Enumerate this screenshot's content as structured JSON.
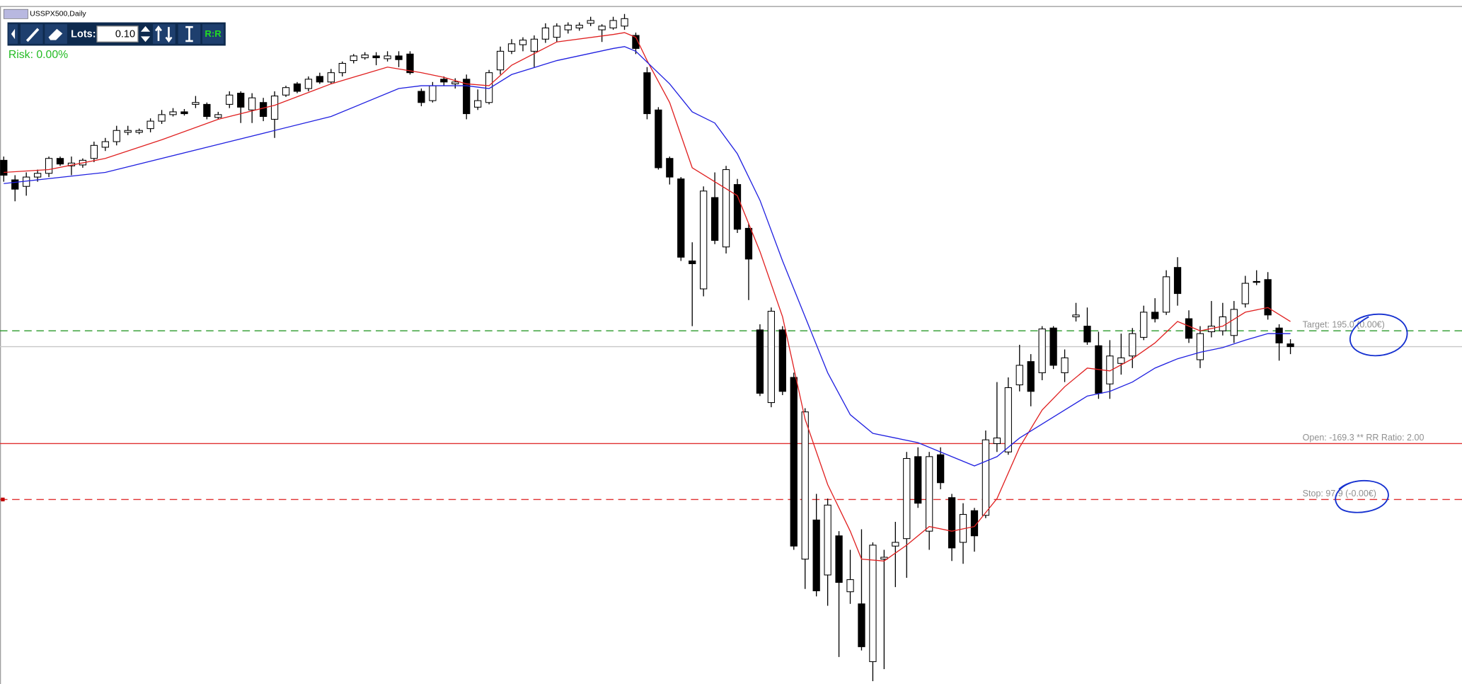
{
  "window_title": "USSPX500,Daily",
  "toolbar": {
    "lots_label": "Lots:",
    "lots_value": "0.10",
    "rr_button": "R:R",
    "risk": "Risk: 0.00%"
  },
  "chart_data": {
    "type": "candlestick",
    "ylim": [
      0,
      734
    ],
    "xlim": [
      1,
      115
    ],
    "up_color": "#ffffff",
    "down_color": "#000000",
    "candles": [
      [
        562,
        566,
        539,
        546
      ],
      [
        541,
        546,
        518,
        531
      ],
      [
        534,
        549,
        524,
        544
      ],
      [
        544,
        552,
        539,
        548
      ],
      [
        548,
        566,
        544,
        564
      ],
      [
        564,
        566,
        556,
        558
      ],
      [
        556,
        566,
        546,
        559
      ],
      [
        557,
        564,
        554,
        562
      ],
      [
        564,
        582,
        560,
        578
      ],
      [
        576,
        586,
        572,
        582
      ],
      [
        582,
        599,
        578,
        594
      ],
      [
        592,
        599,
        589,
        594
      ],
      [
        592,
        596,
        590,
        594
      ],
      [
        596,
        607,
        592,
        604
      ],
      [
        604,
        616,
        601,
        611
      ],
      [
        611,
        618,
        609,
        614
      ],
      [
        614,
        617,
        610,
        612
      ],
      [
        622,
        631,
        618,
        624
      ],
      [
        622,
        624,
        606,
        609
      ],
      [
        608,
        614,
        606,
        611
      ],
      [
        622,
        636,
        618,
        632
      ],
      [
        634,
        636,
        602,
        619
      ],
      [
        616,
        634,
        602,
        629
      ],
      [
        624,
        629,
        604,
        609
      ],
      [
        606,
        636,
        586,
        631
      ],
      [
        632,
        642,
        630,
        640
      ],
      [
        644,
        646,
        634,
        636
      ],
      [
        639,
        652,
        636,
        649
      ],
      [
        652,
        656,
        644,
        646
      ],
      [
        646,
        660,
        644,
        656
      ],
      [
        656,
        668,
        652,
        666
      ],
      [
        669,
        676,
        666,
        674
      ],
      [
        672,
        678,
        670,
        675
      ],
      [
        674,
        678,
        664,
        672
      ],
      [
        671,
        679,
        668,
        674
      ],
      [
        674,
        679,
        662,
        670
      ],
      [
        676,
        679,
        654,
        656
      ],
      [
        636,
        639,
        620,
        624
      ],
      [
        626,
        646,
        624,
        642
      ],
      [
        649,
        652,
        642,
        646
      ],
      [
        644,
        650,
        639,
        646
      ],
      [
        649,
        654,
        606,
        612
      ],
      [
        619,
        638,
        616,
        626
      ],
      [
        624,
        659,
        622,
        656
      ],
      [
        659,
        684,
        654,
        679
      ],
      [
        679,
        692,
        676,
        687
      ],
      [
        686,
        694,
        679,
        691
      ],
      [
        679,
        696,
        662,
        692
      ],
      [
        692,
        709,
        688,
        704
      ],
      [
        694,
        709,
        689,
        706
      ],
      [
        702,
        710,
        698,
        707
      ],
      [
        704,
        710,
        701,
        707
      ],
      [
        709,
        716,
        706,
        712
      ],
      [
        702,
        708,
        689,
        706
      ],
      [
        704,
        716,
        702,
        712
      ],
      [
        706,
        719,
        702,
        714
      ],
      [
        696,
        699,
        676,
        682
      ],
      [
        656,
        662,
        606,
        612
      ],
      [
        616,
        619,
        552,
        554
      ],
      [
        564,
        566,
        536,
        544
      ],
      [
        542,
        544,
        454,
        458
      ],
      [
        454,
        474,
        384,
        451
      ],
      [
        424,
        534,
        416,
        529
      ],
      [
        522,
        549,
        472,
        476
      ],
      [
        469,
        556,
        462,
        552
      ],
      [
        536,
        542,
        484,
        488
      ],
      [
        489,
        494,
        412,
        456
      ],
      [
        380,
        386,
        309,
        312
      ],
      [
        302,
        404,
        297,
        400
      ],
      [
        380,
        384,
        310,
        314
      ],
      [
        329,
        334,
        144,
        148
      ],
      [
        134,
        296,
        102,
        292
      ],
      [
        176,
        204,
        94,
        100
      ],
      [
        117,
        199,
        84,
        192
      ],
      [
        159,
        164,
        29,
        109
      ],
      [
        99,
        144,
        86,
        112
      ],
      [
        86,
        166,
        36,
        40
      ],
      [
        24,
        152,
        3,
        149
      ],
      [
        134,
        144,
        16,
        136
      ],
      [
        148,
        174,
        104,
        152
      ],
      [
        156,
        249,
        114,
        242
      ],
      [
        244,
        254,
        189,
        194
      ],
      [
        164,
        249,
        144,
        244
      ],
      [
        246,
        254,
        209,
        216
      ],
      [
        200,
        204,
        132,
        146
      ],
      [
        152,
        194,
        129,
        182
      ],
      [
        186,
        189,
        142,
        159
      ],
      [
        181,
        272,
        178,
        262
      ],
      [
        258,
        324,
        249,
        264
      ],
      [
        249,
        329,
        246,
        318
      ],
      [
        321,
        364,
        314,
        342
      ],
      [
        346,
        354,
        298,
        314
      ],
      [
        334,
        384,
        326,
        381
      ],
      [
        382,
        384,
        338,
        342
      ],
      [
        334,
        359,
        324,
        350
      ],
      [
        394,
        409,
        389,
        396
      ],
      [
        384,
        404,
        364,
        367
      ],
      [
        363,
        378,
        306,
        312
      ],
      [
        322,
        369,
        306,
        352
      ],
      [
        344,
        376,
        332,
        350
      ],
      [
        352,
        382,
        339,
        376
      ],
      [
        372,
        406,
        369,
        399
      ],
      [
        399,
        414,
        388,
        392
      ],
      [
        399,
        444,
        396,
        437
      ],
      [
        447,
        458,
        406,
        419
      ],
      [
        392,
        401,
        366,
        371
      ],
      [
        348,
        384,
        339,
        376
      ],
      [
        378,
        411,
        372,
        384
      ],
      [
        379,
        409,
        374,
        394
      ],
      [
        374,
        411,
        366,
        402
      ],
      [
        408,
        438,
        404,
        430
      ],
      [
        432,
        444,
        428,
        431
      ],
      [
        434,
        442,
        391,
        396
      ],
      [
        382,
        386,
        347,
        366
      ],
      [
        365,
        370,
        354,
        362
      ]
    ],
    "moving_averages": [
      {
        "color": "#e02020",
        "x": [
          1,
          5,
          10,
          15,
          20,
          25,
          30,
          35,
          38,
          40,
          42,
          44,
          46,
          50,
          55,
          56,
          57,
          58,
          60,
          62,
          64,
          66,
          68,
          70,
          72,
          74,
          76,
          77,
          79,
          81,
          83,
          85,
          87,
          89,
          91,
          93,
          95,
          97,
          99,
          101,
          103,
          105,
          107,
          109,
          111,
          113,
          115
        ],
        "values": [
          549,
          552,
          564,
          584,
          606,
          621,
          644,
          662,
          656,
          651,
          644,
          642,
          664,
          689,
          697,
          699,
          694,
          669,
          624,
          554,
          539,
          524,
          464,
          394,
          284,
          214,
          164,
          134,
          132,
          149,
          169,
          164,
          169,
          199,
          254,
          294,
          319,
          339,
          336,
          349,
          366,
          389,
          379,
          384,
          399,
          404,
          389
        ]
      },
      {
        "color": "#2020e0",
        "x": [
          1,
          10,
          20,
          30,
          36,
          38,
          42,
          44,
          46,
          50,
          55,
          56,
          57,
          60,
          62,
          64,
          66,
          68,
          70,
          72,
          74,
          76,
          78,
          80,
          82,
          85,
          87,
          89,
          91,
          93,
          95,
          97,
          99,
          101,
          103,
          105,
          107,
          109,
          111,
          113,
          115
        ],
        "values": [
          537,
          549,
          579,
          609,
          639,
          642,
          642,
          639,
          654,
          669,
          682,
          684,
          679,
          644,
          614,
          602,
          569,
          519,
          454,
          394,
          334,
          289,
          269,
          264,
          259,
          244,
          234,
          244,
          264,
          279,
          294,
          309,
          314,
          324,
          339,
          349,
          356,
          361,
          369,
          376,
          376
        ]
      }
    ],
    "levels": [
      {
        "label": "Target: 195.0 (0.00€)",
        "value": 379,
        "color": "#2a9a2a",
        "style": "dashed"
      },
      {
        "value": 362,
        "color": "#c8c8c8",
        "style": "solid"
      },
      {
        "label": "Open: -169.3 ** RR Ratio: 2.00",
        "value": 258,
        "color": "#e03030",
        "style": "solid"
      },
      {
        "label": "Stop: 97.9 (-0.00€)",
        "value": 198,
        "color": "#e03030",
        "style": "dashed"
      }
    ]
  }
}
